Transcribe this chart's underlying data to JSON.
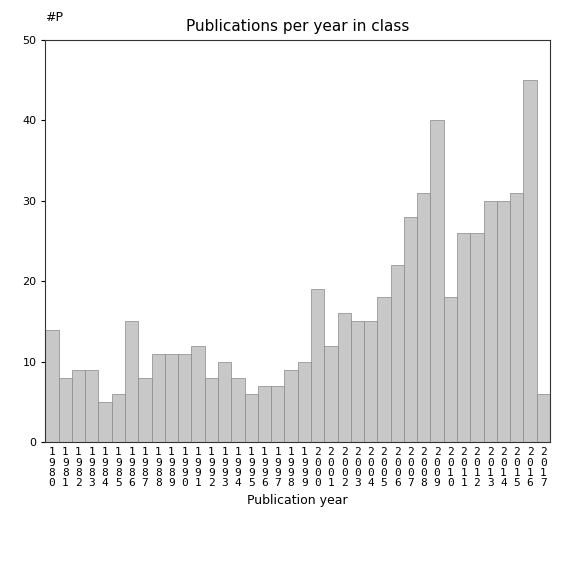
{
  "years": [
    1980,
    1981,
    1982,
    1983,
    1984,
    1985,
    1986,
    1987,
    1988,
    1989,
    1990,
    1991,
    1992,
    1993,
    1994,
    1995,
    1996,
    1997,
    1998,
    1999,
    2000,
    2001,
    2002,
    2003,
    2004,
    2005,
    2006,
    2007,
    2008,
    2009,
    2010,
    2011,
    2012,
    2013,
    2014,
    2015,
    2016,
    2017
  ],
  "values": [
    14,
    8,
    9,
    9,
    5,
    6,
    15,
    8,
    11,
    11,
    11,
    12,
    8,
    10,
    8,
    6,
    7,
    7,
    9,
    10,
    19,
    12,
    16,
    15,
    15,
    18,
    22,
    28,
    31,
    40,
    18,
    26,
    26,
    30,
    30,
    31,
    45,
    6
  ],
  "bar_color": "#c8c8c8",
  "bar_edgecolor": "#888888",
  "title": "Publications per year in class",
  "xlabel": "Publication year",
  "yp_label": "#P",
  "ylim": [
    0,
    50
  ],
  "yticks": [
    0,
    10,
    20,
    30,
    40,
    50
  ],
  "background_color": "#ffffff",
  "title_fontsize": 11,
  "label_fontsize": 9,
  "tick_fontsize": 8
}
